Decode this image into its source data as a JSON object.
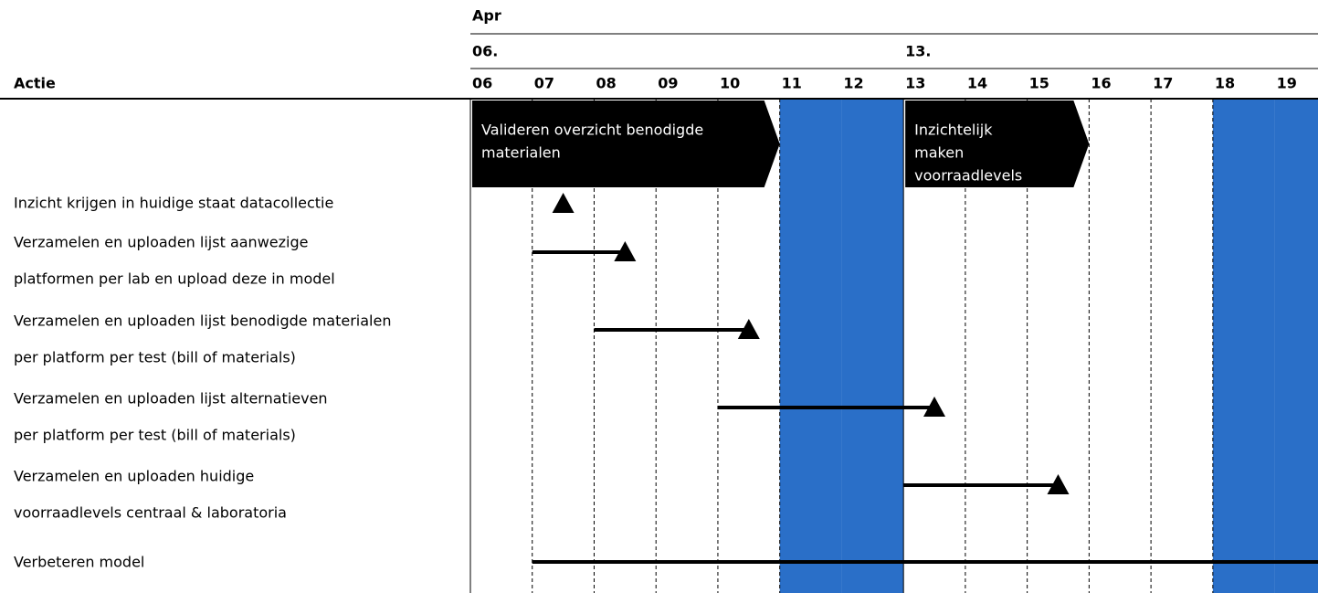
{
  "chart_data": {
    "type": "gantt",
    "axis_title": "Actie",
    "month": "Apr",
    "weeks": [
      {
        "label": "06.",
        "start": 6
      },
      {
        "label": "13.",
        "start": 13
      }
    ],
    "categories": [
      "06",
      "07",
      "08",
      "09",
      "10",
      "11",
      "12",
      "13",
      "14",
      "15",
      "16",
      "17",
      "18",
      "19"
    ],
    "xlim": [
      6,
      19.7
    ],
    "weekend_days": [
      11,
      12,
      18,
      19
    ],
    "weekend_color": "#2a6fc8",
    "phases": [
      {
        "lines": [
          "Valideren overzicht benodigde",
          "materialen"
        ],
        "start": 6,
        "end": 11
      },
      {
        "lines": [
          "Inzichtelijk",
          "maken",
          "voorraadlevels"
        ],
        "start": 13,
        "end": 16
      }
    ],
    "tasks": [
      {
        "label": [
          "Inzicht krijgen in huidige staat datacollectie"
        ],
        "bar": null,
        "milestone": 7.5
      },
      {
        "label": [
          "Verzamelen en uploaden lijst aanwezige",
          "platformen per lab en upload deze in model"
        ],
        "bar": [
          7,
          8.5
        ],
        "milestone": 8.5
      },
      {
        "label": [
          "Verzamelen en uploaden lijst benodigde materialen",
          "per platform per test (bill of materials)"
        ],
        "bar": [
          8,
          10.5
        ],
        "milestone": 10.5
      },
      {
        "label": [
          "Verzamelen en uploaden lijst alternatieven",
          "per platform per test (bill of materials)"
        ],
        "bar": [
          10,
          13.5
        ],
        "milestone": 13.5
      },
      {
        "label": [
          "Verzamelen en uploaden huidige",
          "voorraadlevels centraal & laboratoria"
        ],
        "bar": [
          13,
          15.5
        ],
        "milestone": 15.5
      },
      {
        "label": [
          "Verbeteren model"
        ],
        "bar": [
          7,
          19.7
        ],
        "milestone": null
      }
    ]
  }
}
